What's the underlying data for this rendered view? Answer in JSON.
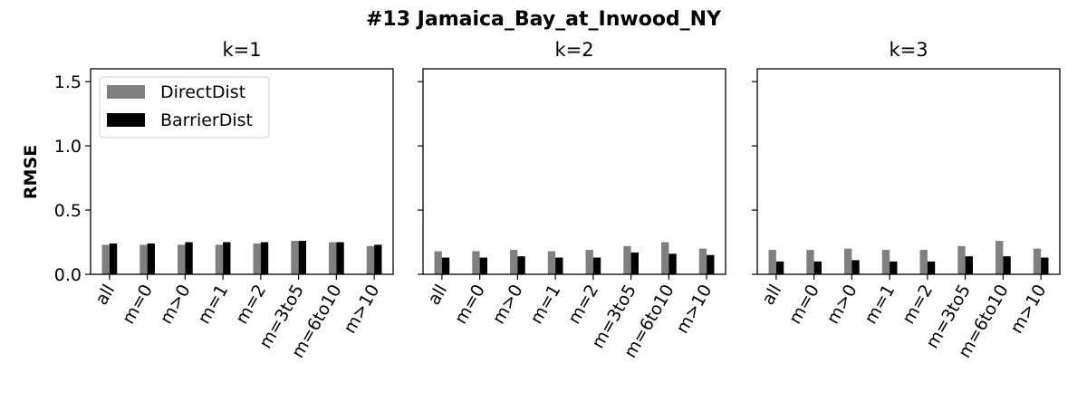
{
  "figure": {
    "title": "#13 Jamaica_Bay_at_Inwood_NY",
    "ylabel": "RMSE"
  },
  "colors": {
    "DirectDist": "#808080",
    "BarrierDist": "#000000",
    "axes": "#000000",
    "background": "#ffffff"
  },
  "chart_data": [
    {
      "type": "bar",
      "title": "k=1",
      "ylabel": "RMSE",
      "ylim": [
        0,
        1.6
      ],
      "yticks": [
        "0.0",
        "0.5",
        "1.0",
        "1.5"
      ],
      "grid": false,
      "legend_position": "upper-left",
      "categories": [
        "all",
        "m=0",
        "m>0",
        "m=1",
        "m=2",
        "m=3to5",
        "m=6to10",
        "m>10"
      ],
      "series": [
        {
          "name": "DirectDist",
          "values": [
            0.23,
            0.23,
            0.23,
            0.23,
            0.24,
            0.26,
            0.25,
            0.22
          ]
        },
        {
          "name": "BarrierDist",
          "values": [
            0.24,
            0.24,
            0.25,
            0.25,
            0.25,
            0.26,
            0.25,
            0.23
          ]
        }
      ]
    },
    {
      "type": "bar",
      "title": "k=2",
      "ylim": [
        0,
        1.6
      ],
      "grid": false,
      "categories": [
        "all",
        "m=0",
        "m>0",
        "m=1",
        "m=2",
        "m=3to5",
        "m=6to10",
        "m>10"
      ],
      "series": [
        {
          "name": "DirectDist",
          "values": [
            0.18,
            0.18,
            0.19,
            0.18,
            0.19,
            0.22,
            0.25,
            0.2
          ]
        },
        {
          "name": "BarrierDist",
          "values": [
            0.13,
            0.13,
            0.14,
            0.13,
            0.13,
            0.17,
            0.16,
            0.15
          ]
        }
      ]
    },
    {
      "type": "bar",
      "title": "k=3",
      "ylim": [
        0,
        1.6
      ],
      "grid": false,
      "categories": [
        "all",
        "m=0",
        "m>0",
        "m=1",
        "m=2",
        "m=3to5",
        "m=6to10",
        "m>10"
      ],
      "series": [
        {
          "name": "DirectDist",
          "values": [
            0.19,
            0.19,
            0.2,
            0.19,
            0.19,
            0.22,
            0.26,
            0.2
          ]
        },
        {
          "name": "BarrierDist",
          "values": [
            0.1,
            0.1,
            0.11,
            0.1,
            0.1,
            0.14,
            0.14,
            0.13
          ]
        }
      ]
    }
  ]
}
